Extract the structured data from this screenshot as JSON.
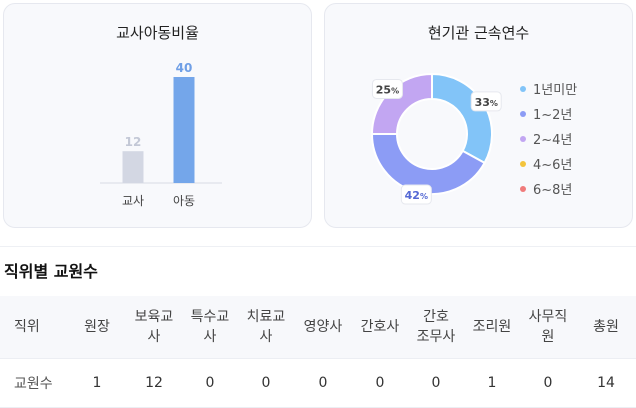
{
  "ratio_card": {
    "title": "교사아동비율",
    "chart_data": {
      "type": "bar",
      "categories": [
        "교사",
        "아동"
      ],
      "values": [
        12,
        40
      ],
      "colors": [
        "#d3d7e3",
        "#74a6ea"
      ],
      "value_label_colors": [
        "#c3c8d6",
        "#6f9fe6"
      ],
      "ylim": [
        0,
        40
      ]
    }
  },
  "tenure_card": {
    "title": "현기관 근속연수",
    "chart_data": {
      "type": "pie",
      "style": "donut",
      "labels": [
        "1년미만",
        "1~2년",
        "2~4년",
        "4~6년",
        "6~8년"
      ],
      "values": [
        33,
        42,
        25,
        0,
        0
      ],
      "colors": [
        "#82c4f8",
        "#8c9cf5",
        "#c2a6f2",
        "#f3c43d",
        "#f07b7b"
      ],
      "percent_suffix": "%"
    }
  },
  "staff_section": {
    "title": "직위별 교원수",
    "headers": [
      "직위",
      "원장",
      "보육교사",
      "특수교사",
      "치료교사",
      "영양사",
      "간호사",
      "간호조무사",
      "조리원",
      "사무직원",
      "총원"
    ],
    "row_label": "교원수",
    "values": [
      "1",
      "12",
      "0",
      "0",
      "0",
      "0",
      "0",
      "1",
      "0",
      "14"
    ]
  }
}
